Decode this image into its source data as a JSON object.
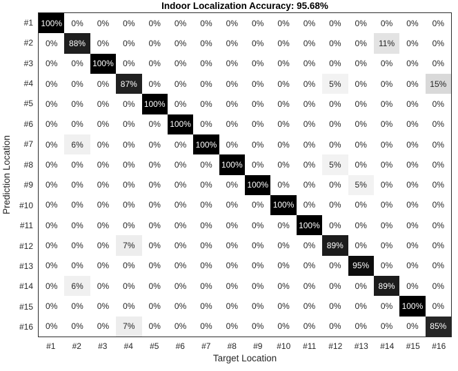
{
  "chart_data": {
    "type": "heatmap",
    "subtype": "confusion-matrix",
    "title": "Indoor Localization Accuracy: 95.68%",
    "xlabel": "Target Location",
    "ylabel": "Prediction Location",
    "categories": [
      "#1",
      "#2",
      "#3",
      "#4",
      "#5",
      "#6",
      "#7",
      "#8",
      "#9",
      "#10",
      "#11",
      "#12",
      "#13",
      "#14",
      "#15",
      "#16"
    ],
    "value_suffix": "%",
    "colormap": "linear grayscale: 0% -> white, 100% -> black",
    "grid": false,
    "legend": false,
    "matrix_percent": [
      [
        100,
        0,
        0,
        0,
        0,
        0,
        0,
        0,
        0,
        0,
        0,
        0,
        0,
        0,
        0,
        0
      ],
      [
        0,
        88,
        0,
        0,
        0,
        0,
        0,
        0,
        0,
        0,
        0,
        0,
        0,
        11,
        0,
        0
      ],
      [
        0,
        0,
        100,
        0,
        0,
        0,
        0,
        0,
        0,
        0,
        0,
        0,
        0,
        0,
        0,
        0
      ],
      [
        0,
        0,
        0,
        87,
        0,
        0,
        0,
        0,
        0,
        0,
        0,
        5,
        0,
        0,
        0,
        15
      ],
      [
        0,
        0,
        0,
        0,
        100,
        0,
        0,
        0,
        0,
        0,
        0,
        0,
        0,
        0,
        0,
        0
      ],
      [
        0,
        0,
        0,
        0,
        0,
        100,
        0,
        0,
        0,
        0,
        0,
        0,
        0,
        0,
        0,
        0
      ],
      [
        0,
        6,
        0,
        0,
        0,
        0,
        100,
        0,
        0,
        0,
        0,
        0,
        0,
        0,
        0,
        0
      ],
      [
        0,
        0,
        0,
        0,
        0,
        0,
        0,
        100,
        0,
        0,
        0,
        5,
        0,
        0,
        0,
        0
      ],
      [
        0,
        0,
        0,
        0,
        0,
        0,
        0,
        0,
        100,
        0,
        0,
        0,
        5,
        0,
        0,
        0
      ],
      [
        0,
        0,
        0,
        0,
        0,
        0,
        0,
        0,
        0,
        100,
        0,
        0,
        0,
        0,
        0,
        0
      ],
      [
        0,
        0,
        0,
        0,
        0,
        0,
        0,
        0,
        0,
        0,
        100,
        0,
        0,
        0,
        0,
        0
      ],
      [
        0,
        0,
        0,
        7,
        0,
        0,
        0,
        0,
        0,
        0,
        0,
        89,
        0,
        0,
        0,
        0
      ],
      [
        0,
        0,
        0,
        0,
        0,
        0,
        0,
        0,
        0,
        0,
        0,
        0,
        95,
        0,
        0,
        0
      ],
      [
        0,
        6,
        0,
        0,
        0,
        0,
        0,
        0,
        0,
        0,
        0,
        0,
        0,
        89,
        0,
        0
      ],
      [
        0,
        0,
        0,
        0,
        0,
        0,
        0,
        0,
        0,
        0,
        0,
        0,
        0,
        0,
        100,
        0
      ],
      [
        0,
        0,
        0,
        7,
        0,
        0,
        0,
        0,
        0,
        0,
        0,
        0,
        0,
        0,
        0,
        85
      ]
    ]
  },
  "colors": {
    "background": "#ffffff",
    "border": "#2b2b2b",
    "title_text": "#000000",
    "axis_text": "#262626",
    "cell_text_dark": "#262626",
    "cell_text_light": "#ffffff"
  }
}
